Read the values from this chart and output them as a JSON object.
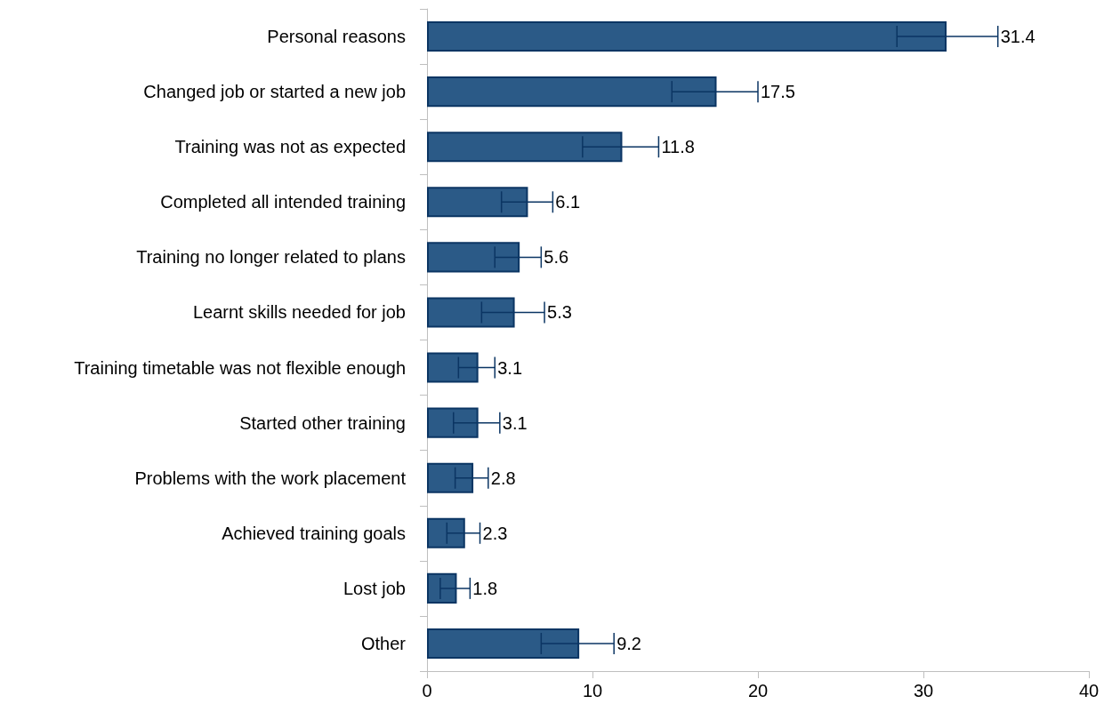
{
  "chart_data": {
    "type": "bar",
    "orientation": "horizontal",
    "categories": [
      "Personal reasons",
      "Changed job or started a new job",
      "Training was not as expected",
      "Completed all intended training",
      "Training no longer related to plans",
      "Learnt skills needed for job",
      "Training timetable was not flexible enough",
      "Started other training",
      "Problems with the work placement",
      "Achieved training goals",
      "Lost job",
      "Other"
    ],
    "values": [
      31.4,
      17.5,
      11.8,
      6.1,
      5.6,
      5.3,
      3.1,
      3.1,
      2.8,
      2.3,
      1.8,
      9.2
    ],
    "errors": [
      [
        28.4,
        34.5
      ],
      [
        14.8,
        20.0
      ],
      [
        9.4,
        14.0
      ],
      [
        4.5,
        7.6
      ],
      [
        4.1,
        6.9
      ],
      [
        3.3,
        7.1
      ],
      [
        1.9,
        4.1
      ],
      [
        1.6,
        4.4
      ],
      [
        1.7,
        3.7
      ],
      [
        1.2,
        3.2
      ],
      [
        0.8,
        2.6
      ],
      [
        6.9,
        11.3
      ]
    ],
    "color": "#2b5a87",
    "xlim": [
      0,
      40
    ],
    "xticks": [
      0,
      10,
      20,
      30,
      40
    ],
    "data_labels": true,
    "grid": false
  }
}
